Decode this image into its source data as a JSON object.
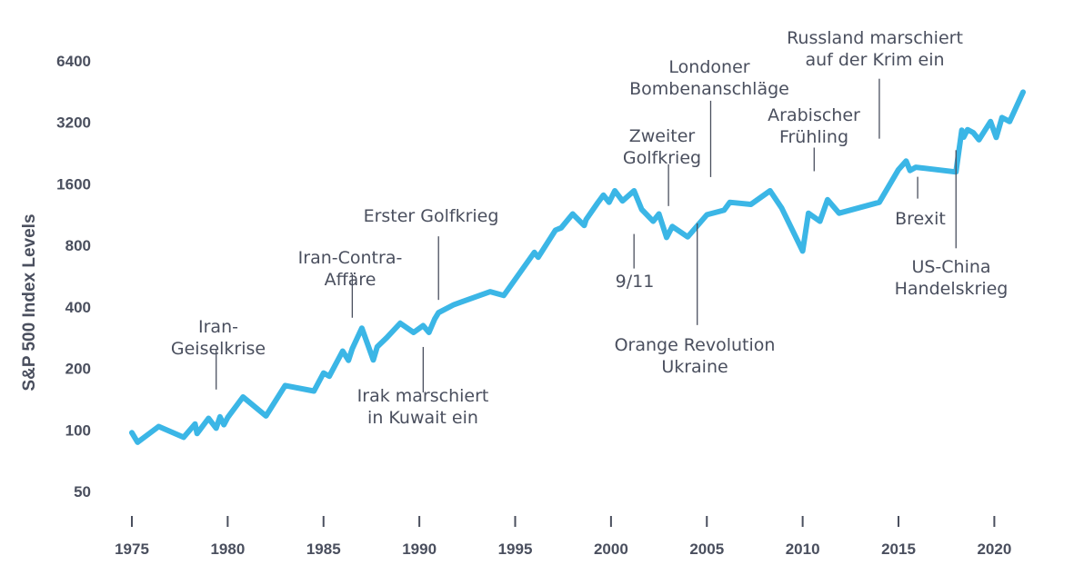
{
  "chart_data": {
    "type": "line",
    "title": "",
    "xlabel": "",
    "ylabel": "S&P 500 Index Levels",
    "yscale": "log2",
    "ylim": [
      50,
      6400
    ],
    "xlim": [
      1975,
      2021.5
    ],
    "x_ticks": [
      "1975",
      "1980",
      "1985",
      "1990",
      "1995",
      "2000",
      "2005",
      "2010",
      "2015",
      "2020"
    ],
    "y_ticks": [
      "50",
      "100",
      "200",
      "400",
      "800",
      "1600",
      "3200",
      "6400"
    ],
    "grid": false,
    "series": [
      {
        "name": "S&P 500",
        "color": "#3bb6e6",
        "x": [
          1975,
          1975.3,
          1976.4,
          1977.7,
          1978.3,
          1978.4,
          1979.0,
          1979.4,
          1979.6,
          1979.8,
          1980.0,
          1980.8,
          1982.0,
          1983.0,
          1984.5,
          1985.0,
          1985.3,
          1986.0,
          1986.3,
          1986.5,
          1987.0,
          1987.6,
          1987.8,
          1988.3,
          1989.0,
          1989.7,
          1990.2,
          1990.5,
          1990.8,
          1991.0,
          1991.8,
          1993.7,
          1994.4,
          1996.0,
          1996.2,
          1997.1,
          1997.4,
          1998.0,
          1998.6,
          1998.7,
          1999.3,
          1999.6,
          1999.9,
          2000.2,
          2000.6,
          2001.2,
          2001.6,
          2002.2,
          2002.5,
          2002.9,
          2003.2,
          2004.0,
          2005.0,
          2005.9,
          2006.2,
          2007.3,
          2008.3,
          2008.9,
          2010.0,
          2010.3,
          2010.9,
          2011.3,
          2011.9,
          2014.0,
          2015.0,
          2015.4,
          2015.6,
          2015.9,
          2018.0,
          2018.3,
          2018.4,
          2018.6,
          2018.9,
          2019.2,
          2019.8,
          2020.1,
          2020.4,
          2020.8,
          2021.5
        ],
        "values": [
          97,
          87,
          104,
          92,
          107,
          96,
          114,
          102,
          116,
          106,
          115,
          145,
          117,
          165,
          155,
          190,
          183,
          243,
          219,
          250,
          315,
          220,
          255,
          283,
          333,
          300,
          324,
          300,
          349,
          375,
          410,
          475,
          455,
          740,
          700,
          950,
          975,
          1140,
          1000,
          1070,
          1290,
          1410,
          1300,
          1480,
          1320,
          1480,
          1200,
          1050,
          1140,
          875,
          990,
          880,
          1130,
          1190,
          1300,
          1270,
          1480,
          1220,
          750,
          1150,
          1050,
          1340,
          1150,
          1300,
          1880,
          2070,
          1860,
          1930,
          1830,
          2930,
          2710,
          2950,
          2850,
          2630,
          3230,
          2700,
          3380,
          3230,
          4500
        ]
      }
    ],
    "annotations": [
      {
        "id": "iran-hostage",
        "lines": [
          "Iran-",
          "Geiselkrise"
        ],
        "x": 1979.4,
        "value": 116
      },
      {
        "id": "iran-contra",
        "lines": [
          "Iran-Contra-",
          "Affäre"
        ],
        "x": 1986.5,
        "value": 250
      },
      {
        "id": "iraq-kuwait",
        "lines": [
          "Irak marschiert",
          "in Kuwait ein"
        ],
        "x": 1990.2,
        "value": 300
      },
      {
        "id": "gulf-war-1",
        "lines": [
          "Erster Golfkrieg"
        ],
        "x": 1991.0,
        "value": 375
      },
      {
        "id": "nine-eleven",
        "lines": [
          "9/11"
        ],
        "x": 2001.2,
        "value": 1050
      },
      {
        "id": "gulf-war-2",
        "lines": [
          "Zweiter",
          "Golfkrieg"
        ],
        "x": 2003.0,
        "value": 880
      },
      {
        "id": "orange-revolution",
        "lines": [
          "Orange Revolution",
          "Ukraine"
        ],
        "x": 2004.5,
        "value": 1160
      },
      {
        "id": "london-bombings",
        "lines": [
          "Londoner",
          "Bombenanschläge"
        ],
        "x": 2005.2,
        "value": 1220
      },
      {
        "id": "arab-spring",
        "lines": [
          "Arabischer",
          "Frühling"
        ],
        "x": 2010.6,
        "value": 1330
      },
      {
        "id": "crimea",
        "lines": [
          "Russland marschiert",
          "auf der Krim ein"
        ],
        "x": 2014.0,
        "value": 1880
      },
      {
        "id": "brexit",
        "lines": [
          "Brexit"
        ],
        "x": 2016.0,
        "value": 2000
      },
      {
        "id": "us-china",
        "lines": [
          "US-China",
          "Handelskrieg"
        ],
        "x": 2018.0,
        "value": 2700
      }
    ]
  }
}
